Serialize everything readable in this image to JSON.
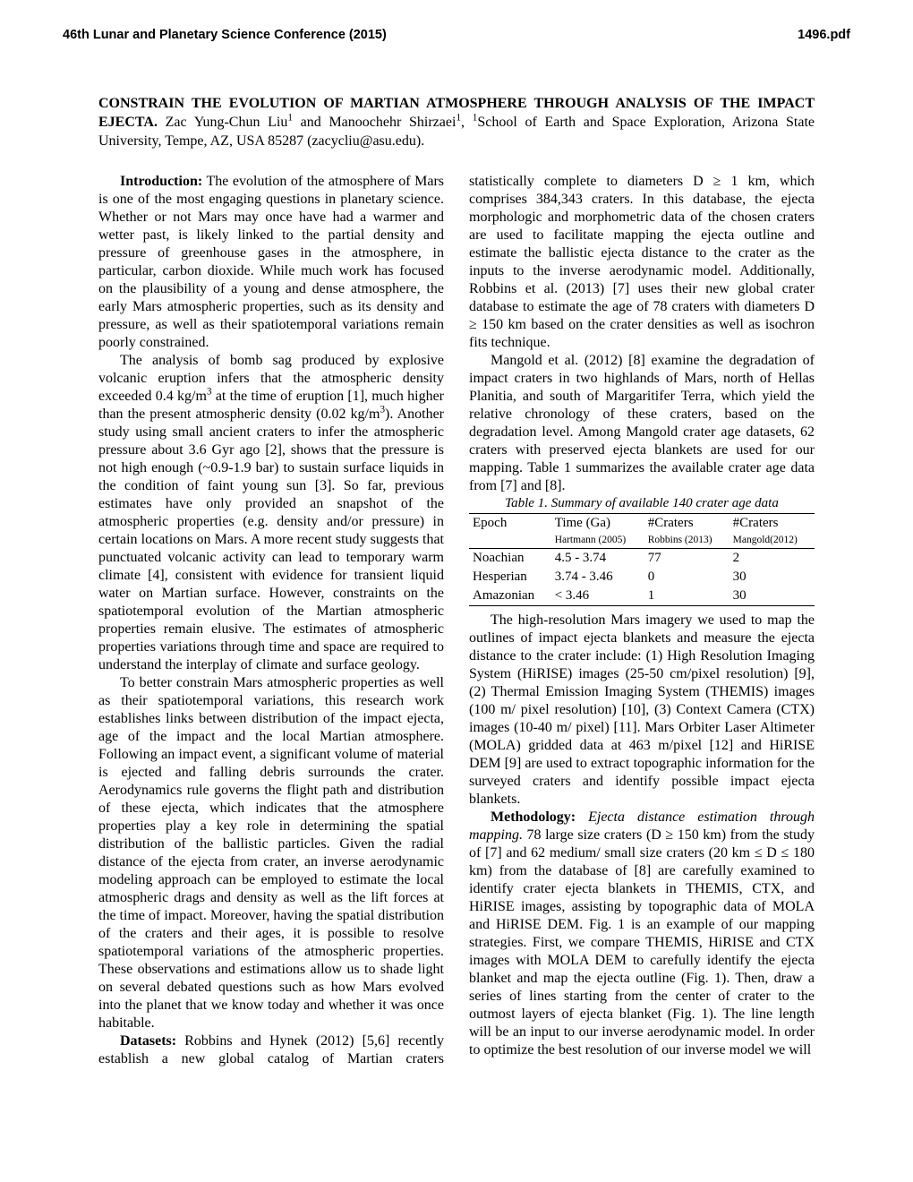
{
  "header": {
    "left": "46th Lunar and Planetary Science Conference (2015)",
    "right": "1496.pdf"
  },
  "title": "CONSTRAIN THE EVOLUTION OF MARTIAN ATMOSPHERE THROUGH ANALYSIS OF THE IMPACT EJECTA.",
  "authors": "  Zac Yung-Chun Liu",
  "super1": "1",
  "authors2": " and Manoochehr Shirzaei",
  "super2": "1",
  "authors3": ", ",
  "affsuper": "1",
  "affiliation": "School of Earth and Space Exploration, Arizona State University, Tempe, AZ, USA 85287 (zacycliu@asu.edu).",
  "intro_head": "Introduction:",
  "intro_p1": "   The evolution of the atmosphere of Mars is one of the most engaging questions in planetary science. Whether or not Mars may once have had a warmer and wetter past, is likely linked to the partial density and pressure of greenhouse gases in the atmosphere, in particular, carbon dioxide. While much work has focused on the plausibility of a young and dense atmosphere, the early Mars atmospheric properties, such as its density and pressure, as well as their spatiotemporal variations remain poorly constrained.",
  "intro_p2a": "The analysis of bomb sag produced by explosive volcanic eruption infers that the atmospheric density exceeded 0.4 kg/m",
  "intro_p2b": " at the time of eruption [1], much higher than the present atmospheric density (0.02 kg/m",
  "intro_p2c": "). Another study using small ancient craters to infer the atmospheric pressure about 3.6 Gyr ago [2], shows that the pressure is not high enough (~0.9-1.9 bar) to sustain surface liquids in the condition of faint young sun [3]. So far, previous estimates have only provided an snapshot of the atmospheric properties (e.g. density and/or pressure) in certain locations on Mars. A more recent study suggests that punctuated volcanic activity can lead to temporary warm climate [4], consistent with evidence for transient liquid water on Martian surface. However, constraints on the spatiotemporal evolution of the Martian atmospheric properties remain elusive. The estimates of atmospheric properties variations through time and space are required to understand the interplay of climate and surface geology.",
  "intro_p3": "To better constrain Mars atmospheric properties as well as their spatiotemporal variations, this research work establishes links between distribution of the impact ejecta, age of the impact and the local Martian atmosphere. Following an impact event, a significant volume of material is ejected and falling debris surrounds the crater. Aerodynamics rule governs the flight path and distribution of these ejecta, which indicates that the atmosphere properties play a key role in determining the spatial distribution of the ballistic particles. Given the radial distance of the ejecta from crater, an inverse aerodynamic modeling approach can be employed to estimate the local atmospheric drags and density as well as the lift forces at the time of impact. Moreover, having the spatial distribution of the craters and their ages, it is possible to resolve spatiotemporal variations of the atmospheric properties. These observations and estimations allow us to shade light on several debated questions such as how Mars evolved into the planet that we know today and whether it was once habitable.",
  "datasets_head": "Datasets:",
  "datasets_p1": "  Robbins and Hynek (2012) [5,6] recently establish a new global catalog of Martian craters statistically complete to diameters D ≥ 1 km, which comprises 384,343 craters. In this database, the ejecta morphologic and morphometric data of the chosen craters are used to facilitate mapping the ejecta outline and estimate the ballistic ejecta distance to the crater as the inputs to the inverse aerodynamic model. Additionally, Robbins et al. (2013) [7] uses their new global crater database to estimate the age of 78 craters with diameters D ≥ 150 km based on the crater densities as well as isochron fits technique.",
  "datasets_p2": "Mangold et al. (2012) [8] examine the degradation of impact craters in two highlands of Mars, north of Hellas Planitia, and south of Margaritifer Terra, which yield the relative chronology of these craters, based on the degradation level. Among Mangold crater age datasets, 62 craters with preserved ejecta blankets are used for our mapping. Table 1 summarizes the available crater age data from [7] and [8].",
  "table": {
    "caption": "Table 1. Summary of available 140 crater age data",
    "columns": {
      "c1": "Epoch",
      "c2": "Time (Ga)",
      "c3": "#Craters",
      "c4": "#Craters"
    },
    "subcolumns": {
      "s2": "Hartmann (2005)",
      "s3": "Robbins (2013)",
      "s4": "Mangold(2012)"
    },
    "rows": [
      {
        "epoch": "Noachian",
        "time": "4.5 - 3.74",
        "r": "77",
        "m": "2"
      },
      {
        "epoch": "Hesperian",
        "time": "3.74 - 3.46",
        "r": "0",
        "m": "30"
      },
      {
        "epoch": "Amazonian",
        "time": "< 3.46",
        "r": "1",
        "m": "30"
      }
    ]
  },
  "post_table": "The high-resolution Mars imagery we used to map the outlines of impact ejecta blankets and measure the ejecta distance to the crater include: (1) High Resolution Imaging System (HiRISE) images (25-50 cm/pixel resolution) [9], (2) Thermal Emission Imaging System (THEMIS) images (100 m/ pixel resolution) [10], (3) Context Camera (CTX) images (10-40 m/ pixel) [11]. Mars Orbiter Laser Altimeter (MOLA) gridded data at 463 m/pixel [12] and HiRISE DEM [9] are used to extract topographic information for the surveyed craters and identify possible impact ejecta blankets.",
  "method_head": "Methodology:",
  "method_sub": "   Ejecta distance estimation through mapping.",
  "method_p1": "   78 large size craters (D ≥ 150 km) from the study of [7] and 62 medium/ small size craters (20 km ≤ D ≤ 180 km) from the database of [8] are carefully examined to identify crater ejecta blankets in THEMIS, CTX, and HiRISE images, assisting by topographic data of MOLA and HiRISE DEM. Fig. 1 is an example of our mapping strategies. First, we compare THEMIS, HiRISE and CTX images with MOLA DEM to carefully identify the ejecta blanket and map the ejecta outline (Fig. 1). Then, draw a series of lines starting from the center of crater to the outmost layers of ejecta blanket (Fig. 1). The line length will be an input to our inverse aerodynamic model. In order to optimize the best resolution of our inverse model we will",
  "sup3": "3"
}
